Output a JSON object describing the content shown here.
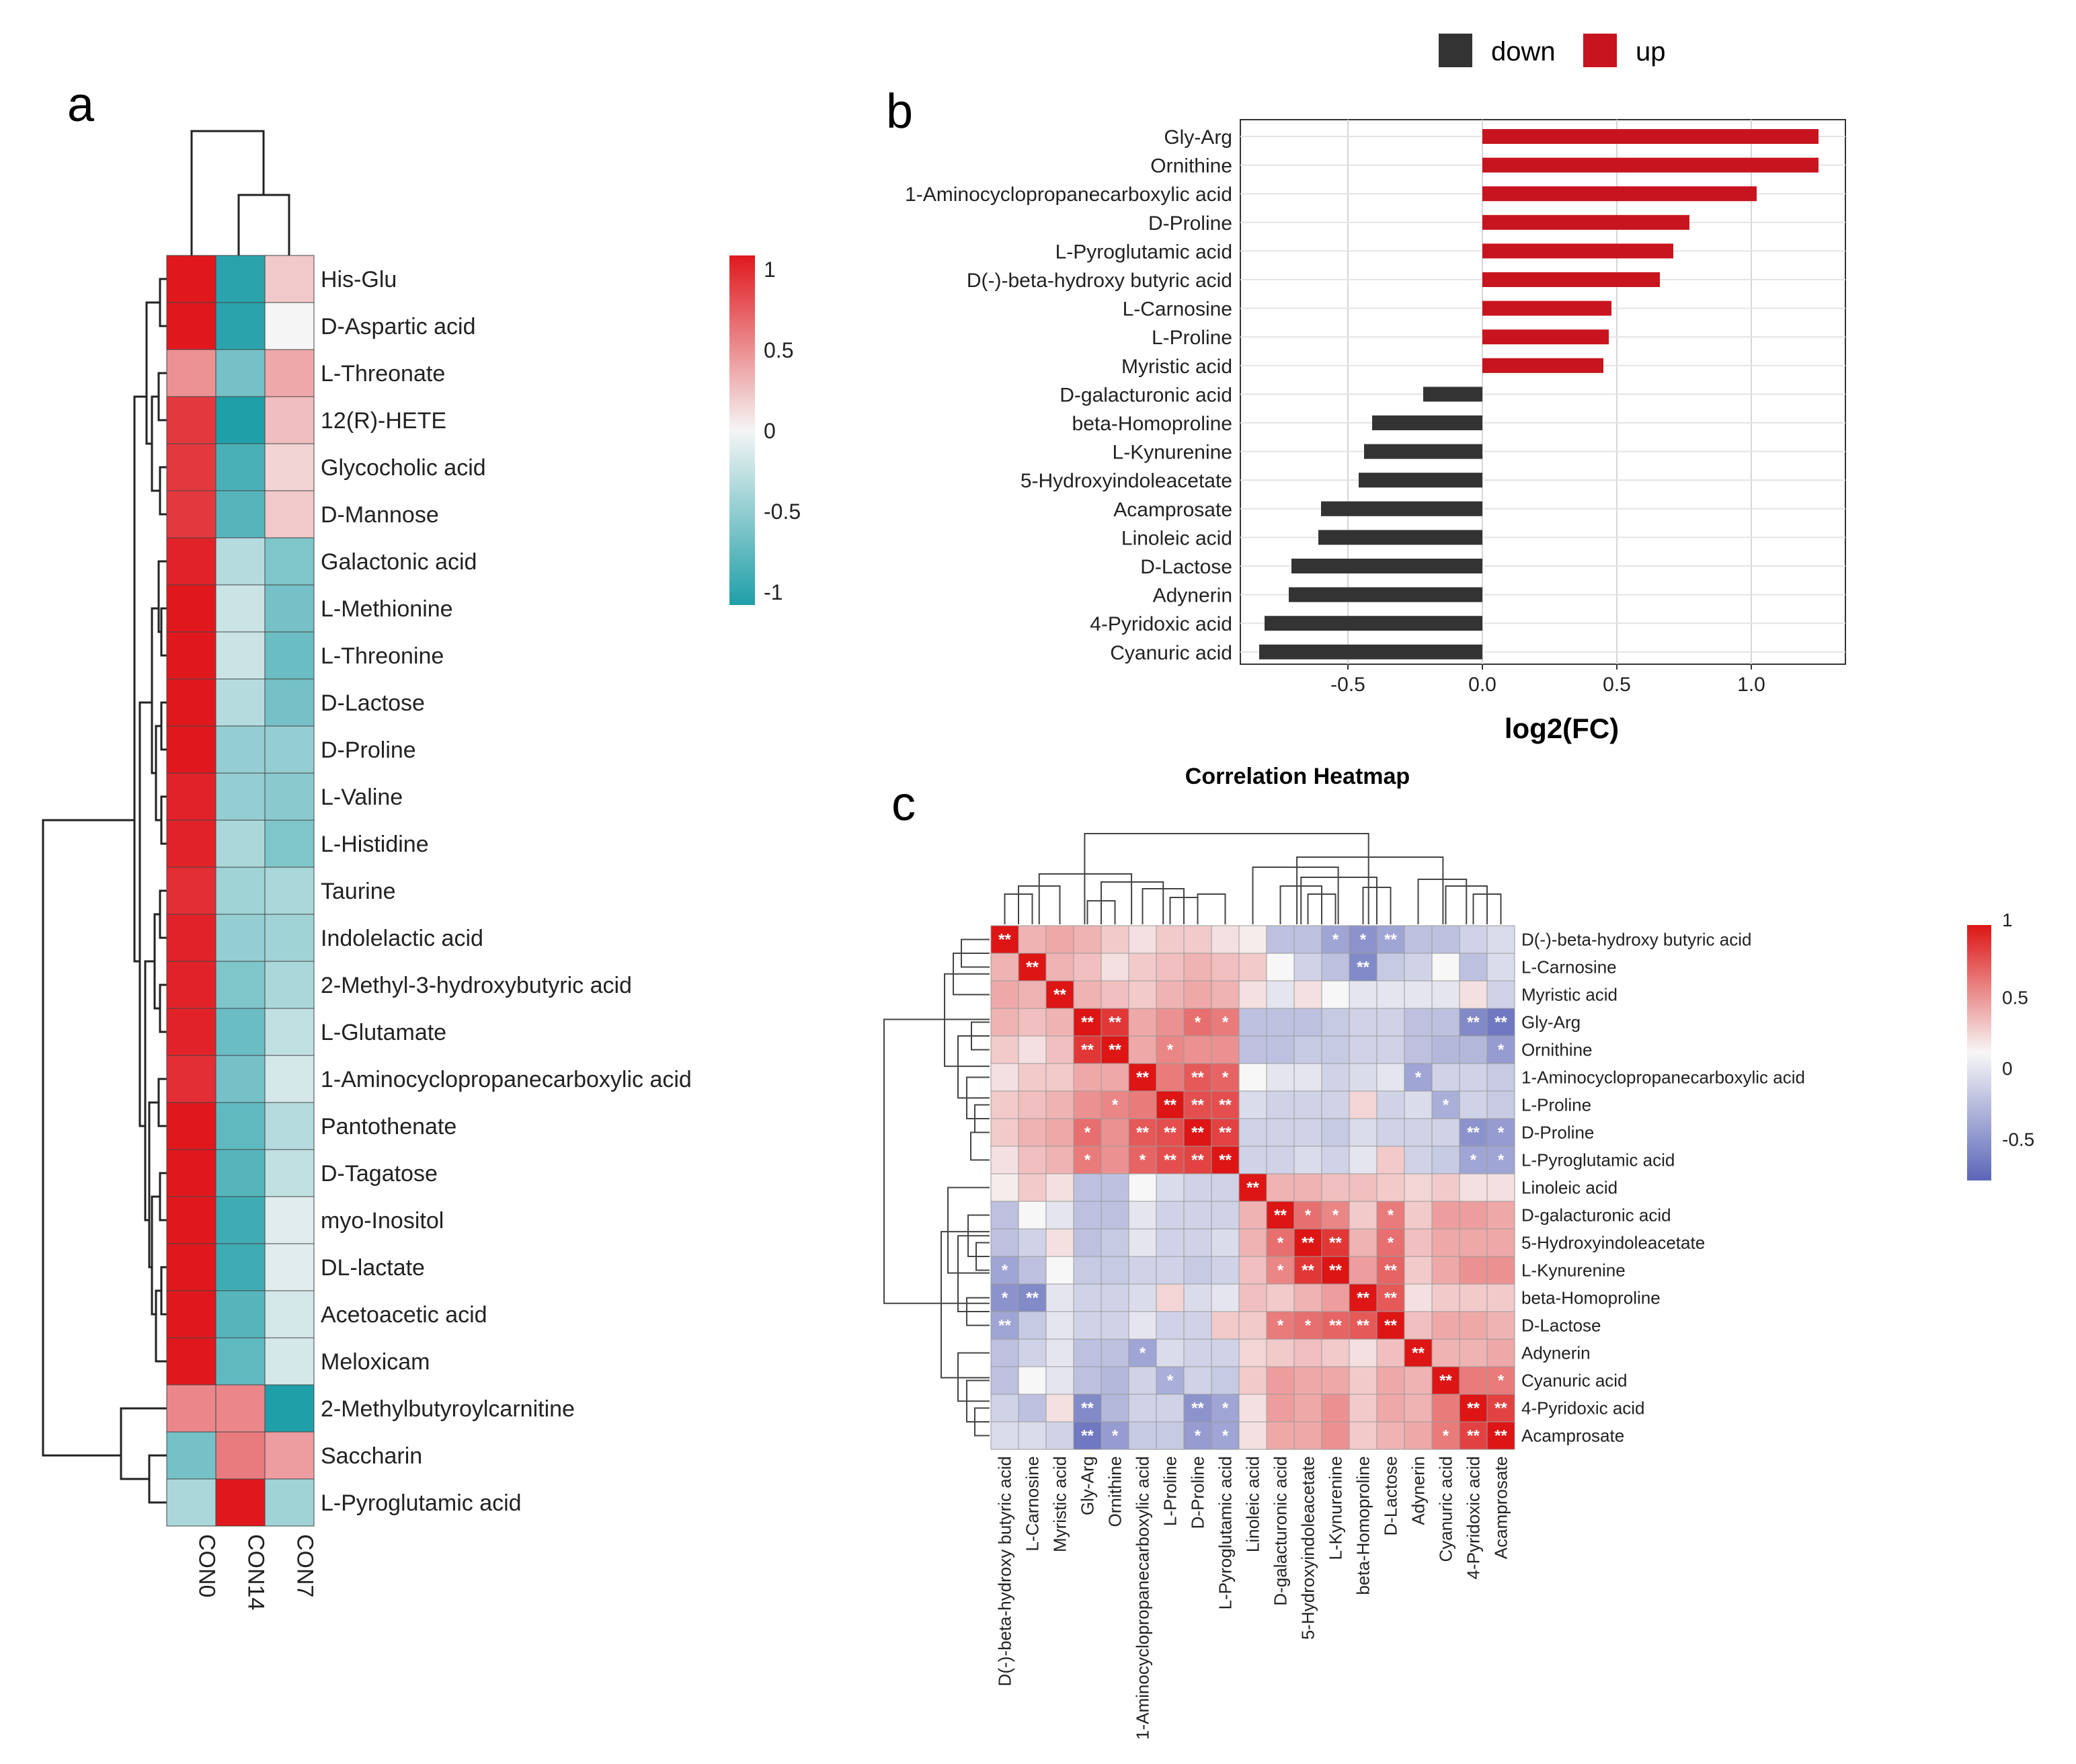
{
  "panel_labels": {
    "a": "a",
    "b": "b",
    "c": "c"
  },
  "colors": {
    "up": "#c8141e",
    "down": "#333333",
    "heat_a_low": "#1f9fa8",
    "heat_a_mid": "#f5f5f5",
    "heat_a_high": "#e0181e",
    "heat_c_low": "#5b66b8",
    "heat_c_mid": "#f7f7f7",
    "heat_c_high": "#dd1515"
  },
  "chart_data": [
    {
      "id": "a",
      "type": "heatmap",
      "title": "",
      "columns": [
        "CON0",
        "CON14",
        "CON7"
      ],
      "rows": [
        "His-Glu",
        "D-Aspartic acid",
        "L-Threonate",
        "12(R)-HETE",
        "Glycocholic acid",
        "D-Mannose",
        "Galactonic acid",
        "L-Methionine",
        "L-Threonine",
        "D-Lactose",
        "D-Proline",
        "L-Valine",
        "L-Histidine",
        "Taurine",
        "Indolelactic acid",
        "2-Methyl-3-hydroxybutyric acid",
        "L-Glutamate",
        "1-Aminocyclopropanecarboxylic acid",
        "Pantothenate",
        "D-Tagatose",
        "myo-Inositol",
        "DL-lactate",
        "Acetoacetic acid",
        "Meloxicam",
        "2-Methylbutyroylcarnitine",
        "Saccharin",
        "L-Pyroglutamic acid"
      ],
      "values": [
        [
          1.0,
          -0.95,
          0.2
        ],
        [
          1.0,
          -0.95,
          0.0
        ],
        [
          0.45,
          -0.6,
          0.35
        ],
        [
          0.85,
          -1.0,
          0.25
        ],
        [
          0.85,
          -0.8,
          0.15
        ],
        [
          0.85,
          -0.75,
          0.2
        ],
        [
          0.95,
          -0.3,
          -0.55
        ],
        [
          1.0,
          -0.2,
          -0.6
        ],
        [
          1.0,
          -0.2,
          -0.65
        ],
        [
          1.0,
          -0.3,
          -0.6
        ],
        [
          1.0,
          -0.45,
          -0.45
        ],
        [
          0.95,
          -0.45,
          -0.5
        ],
        [
          0.95,
          -0.35,
          -0.55
        ],
        [
          0.9,
          -0.4,
          -0.35
        ],
        [
          0.95,
          -0.45,
          -0.4
        ],
        [
          0.95,
          -0.55,
          -0.35
        ],
        [
          0.95,
          -0.65,
          -0.25
        ],
        [
          0.9,
          -0.6,
          -0.15
        ],
        [
          1.0,
          -0.7,
          -0.3
        ],
        [
          1.0,
          -0.75,
          -0.25
        ],
        [
          1.0,
          -0.85,
          -0.1
        ],
        [
          1.0,
          -0.85,
          -0.1
        ],
        [
          1.0,
          -0.75,
          -0.15
        ],
        [
          1.0,
          -0.7,
          -0.15
        ],
        [
          0.5,
          0.5,
          -1.0
        ],
        [
          -0.6,
          0.55,
          0.4
        ],
        [
          -0.35,
          1.0,
          -0.4
        ]
      ],
      "legend_ticks": [
        "1",
        "0.5",
        "0",
        "-0.5",
        "-1"
      ],
      "legend_range": [
        -1,
        1
      ]
    },
    {
      "id": "b",
      "type": "bar",
      "orientation": "horizontal",
      "categories": [
        "Gly-Arg",
        "Ornithine",
        "1-Aminocyclopropanecarboxylic acid",
        "D-Proline",
        "L-Pyroglutamic acid",
        "D(-)-beta-hydroxy butyric acid",
        "L-Carnosine",
        "L-Proline",
        "Myristic acid",
        "D-galacturonic acid",
        "beta-Homoproline",
        "L-Kynurenine",
        "5-Hydroxyindoleacetate",
        "Acamprosate",
        "Linoleic acid",
        "D-Lactose",
        "Adynerin",
        "4-Pyridoxic acid",
        "Cyanuric acid"
      ],
      "values": [
        1.25,
        1.25,
        1.02,
        0.77,
        0.71,
        0.66,
        0.48,
        0.47,
        0.45,
        -0.22,
        -0.41,
        -0.44,
        -0.46,
        -0.6,
        -0.61,
        -0.71,
        -0.72,
        -0.81,
        -0.83
      ],
      "direction": [
        "up",
        "up",
        "up",
        "up",
        "up",
        "up",
        "up",
        "up",
        "up",
        "down",
        "down",
        "down",
        "down",
        "down",
        "down",
        "down",
        "down",
        "down",
        "down"
      ],
      "xlabel": "log2(FC)",
      "ylabel": "",
      "xlim": [
        -0.9,
        1.35
      ],
      "x_ticks": [
        "-0.5",
        "0.0",
        "0.5",
        "1.0"
      ],
      "x_tick_values": [
        -0.5,
        0,
        0.5,
        1.0
      ],
      "legend": [
        {
          "key": "down",
          "label": "down"
        },
        {
          "key": "up",
          "label": "up"
        }
      ],
      "legend_position": "top"
    },
    {
      "id": "c",
      "type": "heatmap",
      "title": "Correlation Heatmap",
      "columns": [
        "D(-)-beta-hydroxy butyric acid",
        "L-Carnosine",
        "Myristic acid",
        "Gly-Arg",
        "Ornithine",
        "1-Aminocyclopropanecarboxylic acid",
        "L-Proline",
        "D-Proline",
        "L-Pyroglutamic acid",
        "Linoleic acid",
        "D-galacturonic acid",
        "5-Hydroxyindoleacetate",
        "L-Kynurenine",
        "beta-Homoproline",
        "D-Lactose",
        "Adynerin",
        "Cyanuric acid",
        "4-Pyridoxic acid",
        "Acamprosate"
      ],
      "rows": [
        "D(-)-beta-hydroxy butyric acid",
        "L-Carnosine",
        "Myristic acid",
        "Gly-Arg",
        "Ornithine",
        "1-Aminocyclopropanecarboxylic acid",
        "L-Proline",
        "D-Proline",
        "L-Pyroglutamic acid",
        "Linoleic acid",
        "D-galacturonic acid",
        "5-Hydroxyindoleacetate",
        "L-Kynurenine",
        "beta-Homoproline",
        "D-Lactose",
        "Adynerin",
        "Cyanuric acid",
        "4-Pyridoxic acid",
        "Acamprosate"
      ],
      "values": [
        [
          1.0,
          0.3,
          0.35,
          0.3,
          0.2,
          0.1,
          0.2,
          0.2,
          0.1,
          0.05,
          -0.3,
          -0.3,
          -0.45,
          -0.55,
          -0.45,
          -0.3,
          -0.3,
          -0.2,
          -0.15
        ],
        [
          0.3,
          1.0,
          0.3,
          0.25,
          0.1,
          0.2,
          0.25,
          0.3,
          0.25,
          0.2,
          0.0,
          -0.2,
          -0.3,
          -0.6,
          -0.25,
          -0.2,
          0.0,
          -0.3,
          -0.15
        ],
        [
          0.35,
          0.3,
          1.0,
          0.3,
          0.25,
          0.2,
          0.3,
          0.35,
          0.3,
          0.1,
          -0.1,
          0.1,
          0.0,
          -0.1,
          -0.1,
          -0.1,
          -0.1,
          0.1,
          -0.2
        ],
        [
          0.3,
          0.25,
          0.3,
          1.0,
          0.85,
          0.35,
          0.45,
          0.6,
          0.55,
          -0.3,
          -0.3,
          -0.3,
          -0.25,
          -0.2,
          -0.2,
          -0.3,
          -0.3,
          -0.6,
          -0.7
        ],
        [
          0.2,
          0.1,
          0.25,
          0.85,
          1.0,
          0.35,
          0.5,
          0.45,
          0.45,
          -0.3,
          -0.3,
          -0.25,
          -0.25,
          -0.2,
          -0.2,
          -0.3,
          -0.35,
          -0.35,
          -0.5
        ],
        [
          0.1,
          0.2,
          0.2,
          0.35,
          0.35,
          1.0,
          0.55,
          0.7,
          0.65,
          0.0,
          -0.1,
          -0.1,
          -0.2,
          -0.15,
          -0.1,
          -0.45,
          -0.2,
          -0.2,
          -0.25
        ],
        [
          0.2,
          0.25,
          0.3,
          0.45,
          0.5,
          0.55,
          1.0,
          0.75,
          0.75,
          -0.15,
          -0.2,
          -0.2,
          -0.2,
          0.15,
          -0.2,
          -0.15,
          -0.4,
          -0.2,
          -0.25
        ],
        [
          0.2,
          0.3,
          0.35,
          0.6,
          0.45,
          0.7,
          0.75,
          1.0,
          0.8,
          -0.2,
          -0.2,
          -0.2,
          -0.25,
          -0.15,
          -0.2,
          -0.2,
          -0.2,
          -0.55,
          -0.5
        ],
        [
          0.1,
          0.25,
          0.3,
          0.55,
          0.45,
          0.65,
          0.75,
          0.8,
          1.0,
          -0.2,
          -0.2,
          -0.15,
          -0.2,
          -0.1,
          0.2,
          -0.2,
          -0.25,
          -0.45,
          -0.45
        ],
        [
          0.05,
          0.2,
          0.1,
          -0.3,
          -0.3,
          0.0,
          -0.15,
          -0.2,
          -0.2,
          1.0,
          0.3,
          0.3,
          0.25,
          0.25,
          0.2,
          0.15,
          0.2,
          0.1,
          0.1
        ],
        [
          -0.3,
          0.0,
          -0.1,
          -0.3,
          -0.3,
          -0.1,
          -0.2,
          -0.2,
          -0.2,
          0.3,
          1.0,
          0.6,
          0.5,
          0.2,
          0.55,
          0.2,
          0.4,
          0.4,
          0.35
        ],
        [
          -0.3,
          -0.2,
          0.1,
          -0.3,
          -0.25,
          -0.1,
          -0.2,
          -0.2,
          -0.15,
          0.3,
          0.6,
          1.0,
          0.85,
          0.3,
          0.6,
          0.25,
          0.35,
          0.35,
          0.35
        ],
        [
          -0.45,
          -0.3,
          0.0,
          -0.25,
          -0.25,
          -0.2,
          -0.2,
          -0.25,
          -0.2,
          0.25,
          0.5,
          0.85,
          1.0,
          0.4,
          0.65,
          0.2,
          0.35,
          0.45,
          0.45
        ],
        [
          -0.55,
          -0.6,
          -0.1,
          -0.2,
          -0.2,
          -0.15,
          0.15,
          -0.15,
          -0.1,
          0.25,
          0.2,
          0.3,
          0.4,
          1.0,
          0.7,
          0.1,
          0.2,
          0.2,
          0.2
        ],
        [
          -0.45,
          -0.25,
          -0.1,
          -0.2,
          -0.2,
          -0.1,
          -0.2,
          -0.2,
          0.2,
          0.2,
          0.55,
          0.6,
          0.65,
          0.7,
          1.0,
          0.25,
          0.35,
          0.35,
          0.3
        ],
        [
          -0.3,
          -0.2,
          -0.1,
          -0.3,
          -0.3,
          -0.45,
          -0.15,
          -0.2,
          -0.2,
          0.15,
          0.2,
          0.25,
          0.2,
          0.1,
          0.25,
          1.0,
          0.3,
          0.3,
          0.35
        ],
        [
          -0.3,
          0.0,
          -0.1,
          -0.3,
          -0.35,
          -0.2,
          -0.4,
          -0.2,
          -0.25,
          0.2,
          0.4,
          0.35,
          0.35,
          0.2,
          0.35,
          0.3,
          1.0,
          0.55,
          0.55
        ],
        [
          -0.2,
          -0.3,
          0.1,
          -0.6,
          -0.35,
          -0.2,
          -0.2,
          -0.55,
          -0.45,
          0.1,
          0.4,
          0.35,
          0.45,
          0.2,
          0.35,
          0.3,
          0.55,
          1.0,
          0.8
        ],
        [
          -0.15,
          -0.15,
          -0.2,
          -0.7,
          -0.5,
          -0.25,
          -0.25,
          -0.5,
          -0.45,
          0.1,
          0.35,
          0.35,
          0.45,
          0.2,
          0.3,
          0.35,
          0.55,
          0.8,
          1.0
        ]
      ],
      "significance": [
        [
          "**",
          "",
          "",
          "",
          "",
          "",
          "",
          "",
          "",
          "",
          "",
          "",
          "*",
          "*",
          "**",
          "",
          "",
          "",
          ""
        ],
        [
          "",
          "**",
          "",
          "",
          "",
          "",
          "",
          "",
          "",
          "",
          "",
          "",
          "",
          "**",
          "",
          "",
          "",
          "",
          ""
        ],
        [
          "",
          "",
          "**",
          "",
          "",
          "",
          "",
          "",
          "",
          "",
          "",
          "",
          "",
          "",
          "",
          "",
          "",
          "",
          ""
        ],
        [
          "",
          "",
          "",
          "**",
          "**",
          "",
          "",
          "*",
          "*",
          "",
          "",
          "",
          "",
          "",
          "",
          "",
          "",
          "**",
          "**"
        ],
        [
          "",
          "",
          "",
          "**",
          "**",
          "",
          "*",
          "",
          "",
          "",
          "",
          "",
          "",
          "",
          "",
          "",
          "",
          "",
          "*"
        ],
        [
          "",
          "",
          "",
          "",
          "",
          "**",
          "",
          "**",
          "*",
          "",
          "",
          "",
          "",
          "",
          "",
          "*",
          "",
          "",
          ""
        ],
        [
          "",
          "",
          "",
          "",
          "*",
          "",
          "**",
          "**",
          "**",
          "",
          "",
          "",
          "",
          "",
          "",
          "",
          "*",
          "",
          ""
        ],
        [
          "",
          "",
          "",
          "*",
          "",
          "**",
          "**",
          "**",
          "**",
          "",
          "",
          "",
          "",
          "",
          "",
          "",
          "",
          "**",
          "*"
        ],
        [
          "",
          "",
          "",
          "*",
          "",
          "*",
          "**",
          "**",
          "**",
          "",
          "",
          "",
          "",
          "",
          "",
          "",
          "",
          "*",
          "*"
        ],
        [
          "",
          "",
          "",
          "",
          "",
          "",
          "",
          "",
          "",
          "**",
          "",
          "",
          "",
          "",
          "",
          "",
          "",
          "",
          ""
        ],
        [
          "",
          "",
          "",
          "",
          "",
          "",
          "",
          "",
          "",
          "",
          "**",
          "*",
          "*",
          "",
          "*",
          "",
          "",
          "",
          ""
        ],
        [
          "",
          "",
          "",
          "",
          "",
          "",
          "",
          "",
          "",
          "",
          "*",
          "**",
          "**",
          "",
          "*",
          "",
          "",
          "",
          ""
        ],
        [
          "*",
          "",
          "",
          "",
          "",
          "",
          "",
          "",
          "",
          "",
          "*",
          "**",
          "**",
          "",
          "**",
          "",
          "",
          "",
          ""
        ],
        [
          "*",
          "**",
          "",
          "",
          "",
          "",
          "",
          "",
          "",
          "",
          "",
          "",
          "",
          "**",
          "**",
          "",
          "",
          "",
          ""
        ],
        [
          "**",
          "",
          "",
          "",
          "",
          "",
          "",
          "",
          "",
          "",
          "*",
          "*",
          "**",
          "**",
          "**",
          "",
          "",
          "",
          ""
        ],
        [
          "",
          "",
          "",
          "",
          "",
          "*",
          "",
          "",
          "",
          "",
          "",
          "",
          "",
          "",
          "",
          "**",
          "",
          "",
          ""
        ],
        [
          "",
          "",
          "",
          "",
          "",
          "",
          "*",
          "",
          "",
          "",
          "",
          "",
          "",
          "",
          "",
          "",
          "**",
          "",
          "*"
        ],
        [
          "",
          "",
          "",
          "**",
          "",
          "",
          "",
          "**",
          "*",
          "",
          "",
          "",
          "",
          "",
          "",
          "",
          "",
          "**",
          "**"
        ],
        [
          "",
          "",
          "",
          "**",
          "*",
          "",
          "",
          "*",
          "*",
          "",
          "",
          "",
          "",
          "",
          "",
          "",
          "*",
          "**",
          "**"
        ]
      ],
      "legend_ticks": [
        "1",
        "0.5",
        "0",
        "-0.5"
      ],
      "legend_range": [
        -0.8,
        1
      ]
    }
  ]
}
